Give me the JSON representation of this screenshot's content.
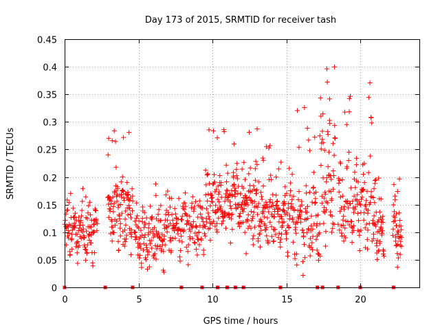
{
  "chart_data": {
    "type": "scatter",
    "title": "Day 173 of 2015, SRMTID for receiver tash",
    "xlabel": "GPS time / hours",
    "ylabel": "SRMTID / TECUs",
    "xlim": [
      0,
      24
    ],
    "ylim": [
      0,
      0.45
    ],
    "xticks": [
      0,
      5,
      10,
      15,
      20
    ],
    "yticks": [
      0,
      0.05,
      0.1,
      0.15,
      0.2,
      0.25,
      0.3,
      0.35,
      0.4,
      0.45
    ],
    "xtick_labels": [
      "0",
      "5",
      "10",
      "15",
      "20"
    ],
    "ytick_labels": [
      "0",
      "0.05",
      "0.1",
      "0.15",
      "0.2",
      "0.25",
      "0.3",
      "0.35",
      "0.4",
      "0.45"
    ],
    "grid": true,
    "marker": "+",
    "color": "#ff0000",
    "zero_markers_x": [
      0.0,
      2.75,
      4.6,
      7.9,
      9.3,
      10.35,
      11.0,
      11.55,
      12.1,
      14.6,
      17.1,
      17.45,
      18.5,
      20.0,
      22.25
    ],
    "segments": [
      {
        "x0": 0.0,
        "x1": 2.2,
        "base": 0.1,
        "amp": 0.035,
        "peak": 0.18,
        "n": 120
      },
      {
        "x0": 2.9,
        "x1": 4.6,
        "base": 0.14,
        "amp": 0.05,
        "peak": 0.3,
        "n": 110
      },
      {
        "x0": 4.7,
        "x1": 6.8,
        "base": 0.09,
        "amp": 0.04,
        "peak": 0.19,
        "n": 110
      },
      {
        "x0": 6.8,
        "x1": 9.5,
        "base": 0.11,
        "amp": 0.04,
        "peak": 0.18,
        "n": 130
      },
      {
        "x0": 9.5,
        "x1": 11.5,
        "base": 0.15,
        "amp": 0.05,
        "peak": 0.29,
        "n": 120
      },
      {
        "x0": 11.5,
        "x1": 13.3,
        "base": 0.15,
        "amp": 0.05,
        "peak": 0.3,
        "n": 110
      },
      {
        "x0": 13.3,
        "x1": 15.2,
        "base": 0.13,
        "amp": 0.045,
        "peak": 0.26,
        "n": 110
      },
      {
        "x0": 15.2,
        "x1": 17.3,
        "base": 0.12,
        "amp": 0.06,
        "peak": 0.33,
        "n": 110
      },
      {
        "x0": 17.3,
        "x1": 18.3,
        "base": 0.2,
        "amp": 0.08,
        "peak": 0.42,
        "n": 60
      },
      {
        "x0": 18.5,
        "x1": 20.8,
        "base": 0.15,
        "amp": 0.06,
        "peak": 0.38,
        "n": 120
      },
      {
        "x0": 20.8,
        "x1": 21.6,
        "base": 0.1,
        "amp": 0.04,
        "peak": 0.2,
        "n": 50
      },
      {
        "x0": 22.2,
        "x1": 22.8,
        "base": 0.1,
        "amp": 0.05,
        "peak": 0.22,
        "n": 40
      }
    ]
  }
}
